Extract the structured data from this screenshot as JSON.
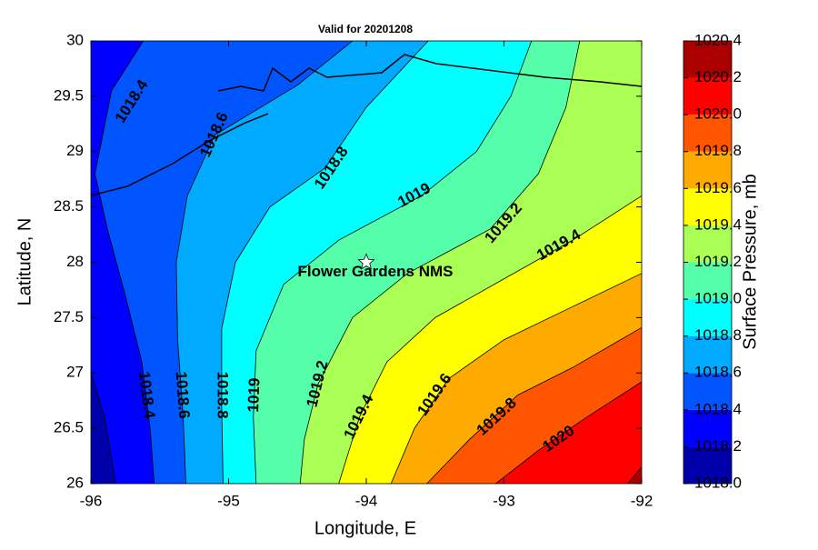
{
  "chart_data": {
    "type": "contourf",
    "title": "Valid for 20201208",
    "x_label": "Longitude, E",
    "y_label": "Latitude, N",
    "colorbar_label": "Surface Pressure, mb",
    "xlim": [
      -96,
      -92
    ],
    "xticks": [
      -96,
      -95,
      -94,
      -93,
      -92
    ],
    "ylim": [
      26,
      30
    ],
    "yticks": [
      26,
      26.5,
      27,
      27.5,
      28,
      28.5,
      29,
      29.5,
      30
    ],
    "clim": [
      1018,
      1020.4
    ],
    "cticks": [
      {
        "value": 1018,
        "label": "1018.0"
      },
      {
        "value": 1018.2,
        "label": "1018.2"
      },
      {
        "value": 1018.4,
        "label": "1018.4"
      },
      {
        "value": 1018.6,
        "label": "1018.6"
      },
      {
        "value": 1018.8,
        "label": "1018.8"
      },
      {
        "value": 1019,
        "label": "1019.0"
      },
      {
        "value": 1019.2,
        "label": "1019.2"
      },
      {
        "value": 1019.4,
        "label": "1019.4"
      },
      {
        "value": 1019.6,
        "label": "1019.6"
      },
      {
        "value": 1019.8,
        "label": "1019.8"
      },
      {
        "value": 1020,
        "label": "1020.0"
      },
      {
        "value": 1020.2,
        "label": "1020.2"
      },
      {
        "value": 1020.4,
        "label": "1020.4"
      }
    ],
    "colors": [
      "#0000aa",
      "#0000ff",
      "#0055ff",
      "#00aaff",
      "#00ffff",
      "#55ffaa",
      "#aaff55",
      "#ffff00",
      "#ffaa00",
      "#ff5500",
      "#ff0000",
      "#aa0000"
    ],
    "contours": [
      {
        "level": 1018.2,
        "lon": [
          -96,
          -95.9,
          -95.82
        ],
        "lat": [
          27.0,
          26.6,
          26.0
        ]
      },
      {
        "level": 1018.4,
        "lon": [
          -95.62,
          -95.85,
          -95.97,
          -95.88,
          -95.75,
          -95.63,
          -95.57,
          -95.54
        ],
        "lat": [
          30,
          29.55,
          28.8,
          28.3,
          27.7,
          27.1,
          26.5,
          26.0
        ]
      },
      {
        "level": 1018.6,
        "lon": [
          -94.1,
          -94.5,
          -95.1,
          -95.3,
          -95.38,
          -95.37,
          -95.33,
          -95.31
        ],
        "lat": [
          30,
          29.6,
          29.15,
          28.6,
          28.0,
          27.3,
          26.6,
          26.0
        ]
      },
      {
        "level": 1018.8,
        "lon": [
          -93.55,
          -94.0,
          -94.3,
          -94.7,
          -94.95,
          -95.05,
          -95.05,
          -95.04
        ],
        "lat": [
          30,
          29.4,
          28.85,
          28.5,
          28.0,
          27.4,
          26.7,
          26.0
        ]
      },
      {
        "level": 1019,
        "lon": [
          -92.8,
          -92.95,
          -93.2,
          -93.6,
          -94.2,
          -94.6,
          -94.8,
          -94.82,
          -94.8
        ],
        "lat": [
          30,
          29.5,
          29.0,
          28.6,
          28.2,
          27.8,
          27.2,
          26.6,
          26.0
        ]
      },
      {
        "level": 1019.2,
        "lon": [
          -92.45,
          -92.55,
          -92.75,
          -93.1,
          -93.7,
          -94.1,
          -94.35,
          -94.45,
          -94.48
        ],
        "lat": [
          30,
          29.4,
          28.8,
          28.3,
          27.9,
          27.5,
          26.9,
          26.4,
          26.0
        ]
      },
      {
        "level": 1019.4,
        "lon": [
          -92,
          -92.5,
          -93.0,
          -93.5,
          -93.85,
          -94.05,
          -94.2
        ],
        "lat": [
          28.6,
          28.2,
          27.85,
          27.5,
          27.1,
          26.6,
          26.0
        ]
      },
      {
        "level": 1019.6,
        "lon": [
          -92,
          -92.5,
          -93.0,
          -93.4,
          -93.65,
          -93.82
        ],
        "lat": [
          27.9,
          27.6,
          27.3,
          26.95,
          26.5,
          26.0
        ]
      },
      {
        "level": 1019.8,
        "lon": [
          -92,
          -92.5,
          -92.9,
          -93.25,
          -93.56
        ],
        "lat": [
          27.41,
          27.05,
          26.8,
          26.4,
          26.0
        ]
      },
      {
        "level": 1020,
        "lon": [
          -92,
          -92.4,
          -92.75,
          -93.06
        ],
        "lat": [
          26.92,
          26.6,
          26.3,
          26.0
        ]
      },
      {
        "level": 1020.2,
        "lon": [
          -92,
          -92.1
        ],
        "lat": [
          26.15,
          26.0
        ]
      }
    ],
    "contour_labels": [
      {
        "text": "1018.4",
        "lon": -95.7,
        "lat": 29.45
      },
      {
        "text": "1018.6",
        "lon": -95.1,
        "lat": 29.15
      },
      {
        "text": "1018.8",
        "lon": -94.25,
        "lat": 28.85
      },
      {
        "text": "1019",
        "lon": -93.65,
        "lat": 28.6
      },
      {
        "text": "1019.2",
        "lon": -93.0,
        "lat": 28.35
      },
      {
        "text": "1019.4",
        "lon": -92.6,
        "lat": 28.15
      },
      {
        "text": "1018.4",
        "lon": -95.6,
        "lat": 26.8
      },
      {
        "text": "1018.6",
        "lon": -95.34,
        "lat": 26.8
      },
      {
        "text": "1018.8",
        "lon": -95.05,
        "lat": 26.8
      },
      {
        "text": "1019",
        "lon": -94.81,
        "lat": 26.8
      },
      {
        "text": "1019.2",
        "lon": -94.35,
        "lat": 26.9
      },
      {
        "text": "1019.4",
        "lon": -94.05,
        "lat": 26.6
      },
      {
        "text": "1019.6",
        "lon": -93.5,
        "lat": 26.8
      },
      {
        "text": "1019.8",
        "lon": -93.05,
        "lat": 26.6
      },
      {
        "text": "1020",
        "lon": -92.6,
        "lat": 26.4
      }
    ],
    "annotation": {
      "text": "Flower Gardens NMS",
      "x": -94,
      "y": 28
    }
  }
}
